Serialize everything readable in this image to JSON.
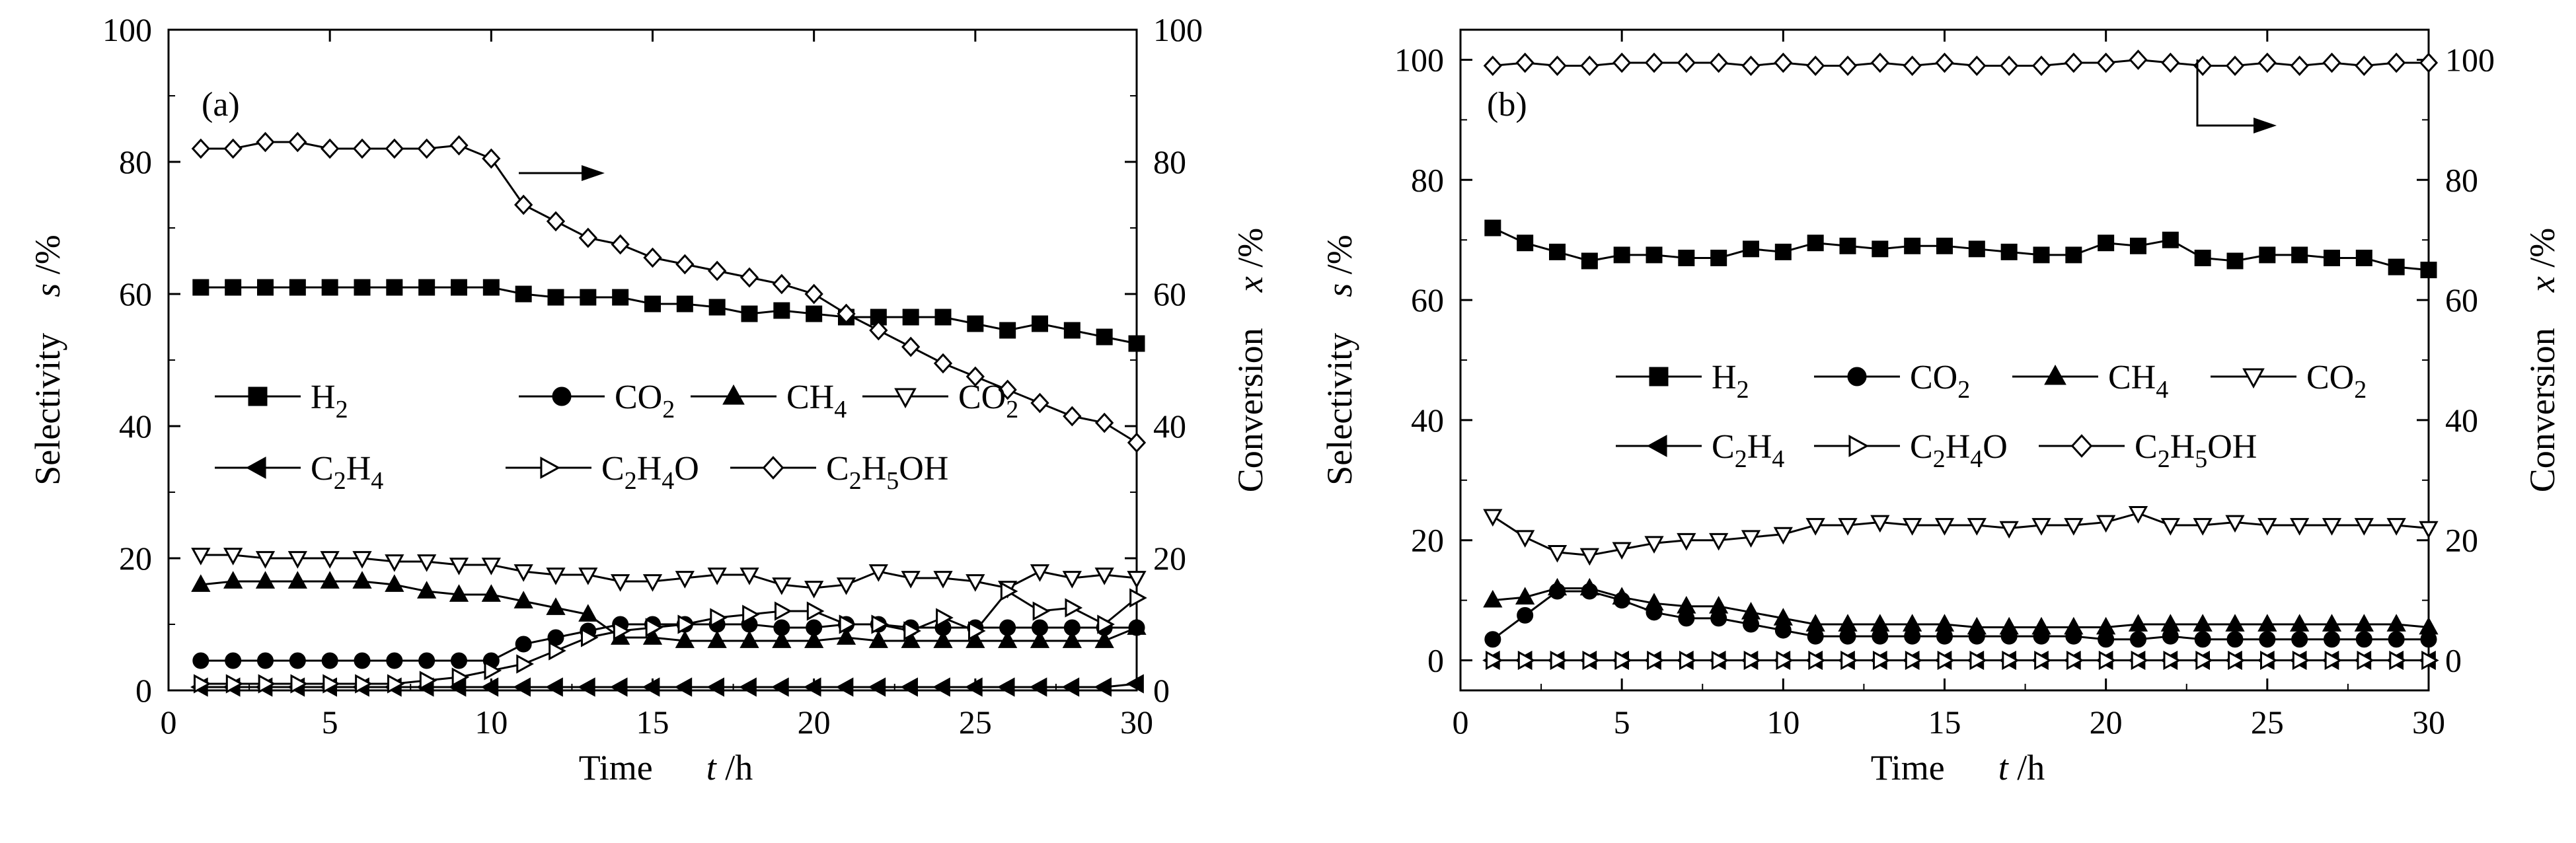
{
  "chart_data": [
    {
      "type": "line",
      "panel_label": "(a)",
      "xlabel": "Time",
      "xlabel_var": "t",
      "xlabel_unit": "/h",
      "ylabel": "Selectivity",
      "ylabel_var": "s",
      "ylabel_unit": "/%",
      "y2label": "Conversion",
      "y2label_var": "x",
      "y2label_unit": "/%",
      "xlim": [
        0,
        30
      ],
      "ylim": [
        0,
        100
      ],
      "y2lim": [
        0,
        100
      ],
      "xticks": [
        "0",
        "5",
        "10",
        "15",
        "20",
        "25",
        "30"
      ],
      "yticks": [
        "0",
        "20",
        "40",
        "60",
        "80",
        "100"
      ],
      "y2ticks": [
        "0",
        "20",
        "40",
        "60",
        "80",
        "100"
      ],
      "grid": false,
      "arrow": "points to right axis (conversion)",
      "x": [
        1,
        2,
        3,
        4,
        5,
        6,
        7,
        8,
        9,
        10,
        11,
        12,
        13,
        14,
        15,
        16,
        17,
        18,
        19,
        20,
        21,
        22,
        23,
        24,
        25,
        26,
        27,
        28,
        29,
        30
      ],
      "series": [
        {
          "name": "H2",
          "label_main": "H",
          "label_sub": "2",
          "label_rest": "",
          "marker": "square-filled",
          "values": [
            61,
            61,
            61,
            61,
            61,
            61,
            61,
            61,
            61,
            61,
            60,
            59.5,
            59.5,
            59.5,
            58.5,
            58.5,
            58,
            57,
            57.5,
            57,
            56.5,
            56.5,
            56.5,
            56.5,
            55.5,
            54.5,
            55.5,
            54.5,
            53.5,
            52.5
          ]
        },
        {
          "name": "CO2",
          "label_main": "CO",
          "label_sub": "2",
          "label_rest": "",
          "marker": "circle-filled",
          "values": [
            4.5,
            4.5,
            4.5,
            4.5,
            4.5,
            4.5,
            4.5,
            4.5,
            4.5,
            4.5,
            7,
            8,
            9,
            10,
            10,
            10,
            10,
            10,
            9.5,
            9.5,
            10,
            10,
            9.5,
            9.5,
            9.5,
            9.5,
            9.5,
            9.5,
            9.5,
            9.5
          ]
        },
        {
          "name": "CH4",
          "label_main": "CH",
          "label_sub": "4",
          "label_rest": "",
          "marker": "triangle-up-filled",
          "values": [
            16,
            16.5,
            16.5,
            16.5,
            16.5,
            16.5,
            16,
            15,
            14.5,
            14.5,
            13.5,
            12.5,
            11.5,
            8,
            8,
            7.5,
            7.5,
            7.5,
            7.5,
            7.5,
            8,
            7.5,
            7.5,
            7.5,
            7.5,
            7.5,
            7.5,
            7.5,
            7.5,
            9.5
          ]
        },
        {
          "name": "CO2",
          "label_main": "CO",
          "label_sub": "2",
          "label_rest": "",
          "marker": "triangle-down-open",
          "values": [
            20.5,
            20.5,
            20,
            20,
            20,
            20,
            19.5,
            19.5,
            19,
            19,
            18,
            17.5,
            17.5,
            16.5,
            16.5,
            17,
            17.5,
            17.5,
            16,
            15.5,
            16,
            18,
            17,
            17,
            16.5,
            15.5,
            18,
            17,
            17.5,
            17
          ]
        },
        {
          "name": "C2H4",
          "label_main": "C",
          "label_sub": "2",
          "label_rest": "H",
          "label_sub2": "4",
          "marker": "triangle-left-filled",
          "values": [
            0.5,
            0.5,
            0.5,
            0.5,
            0.5,
            0.5,
            0.5,
            0.5,
            0.5,
            0.5,
            0.5,
            0.5,
            0.5,
            0.5,
            0.5,
            0.5,
            0.5,
            0.5,
            0.5,
            0.5,
            0.5,
            0.5,
            0.5,
            0.5,
            0.5,
            0.5,
            0.5,
            0.5,
            0.5,
            1
          ]
        },
        {
          "name": "C2H4O",
          "label_main": "C",
          "label_sub": "2",
          "label_rest": "H",
          "label_sub2": "4",
          "label_rest2": "O",
          "marker": "triangle-right-open",
          "values": [
            1,
            1,
            1,
            1,
            1,
            1,
            1,
            1.5,
            2,
            3,
            4,
            6,
            8,
            9,
            9.5,
            10,
            11,
            11.5,
            12,
            12,
            10,
            10,
            9,
            11,
            9,
            15,
            12,
            12.5,
            10,
            14
          ]
        },
        {
          "name": "C2H5OH",
          "label_main": "C",
          "label_sub": "2",
          "label_rest": "H",
          "label_sub2": "5",
          "label_rest2": "OH",
          "marker": "diamond-open",
          "axis": "right",
          "values": [
            82,
            82,
            83,
            83,
            82,
            82,
            82,
            82,
            82.5,
            80.5,
            73.5,
            71,
            68.5,
            67.5,
            65.5,
            64.5,
            63.5,
            62.5,
            61.5,
            60,
            57,
            54.5,
            52,
            49.5,
            47.5,
            45.5,
            43.5,
            41.5,
            40.5,
            37.5
          ]
        }
      ]
    },
    {
      "type": "line",
      "panel_label": "(b)",
      "xlabel": "Time",
      "xlabel_var": "t",
      "xlabel_unit": "/h",
      "ylabel": "Selectivity",
      "ylabel_var": "s",
      "ylabel_unit": "/%",
      "y2label": "Conversion",
      "y2label_var": "x",
      "y2label_unit": "/%",
      "xlim": [
        0,
        30
      ],
      "ylim": [
        -5,
        105
      ],
      "y2lim": [
        -5,
        105
      ],
      "xticks": [
        "0",
        "5",
        "10",
        "15",
        "20",
        "25",
        "30"
      ],
      "yticks": [
        "0",
        "20",
        "40",
        "60",
        "80",
        "100"
      ],
      "y2ticks": [
        "0",
        "20",
        "40",
        "60",
        "80",
        "100"
      ],
      "grid": false,
      "arrow": "points to right axis (conversion)",
      "x": [
        1,
        2,
        3,
        4,
        5,
        6,
        7,
        8,
        9,
        10,
        11,
        12,
        13,
        14,
        15,
        16,
        17,
        18,
        19,
        20,
        21,
        22,
        23,
        24,
        25,
        26,
        27,
        28,
        29,
        30
      ],
      "series": [
        {
          "name": "H2",
          "label_main": "H",
          "label_sub": "2",
          "label_rest": "",
          "marker": "square-filled",
          "values": [
            72,
            69.5,
            68,
            66.5,
            67.5,
            67.5,
            67,
            67,
            68.5,
            68,
            69.5,
            69,
            68.5,
            69,
            69,
            68.5,
            68,
            67.5,
            67.5,
            69.5,
            69,
            70,
            67,
            66.5,
            67.5,
            67.5,
            67,
            67,
            65.5,
            65
          ]
        },
        {
          "name": "CO2",
          "label_main": "CO",
          "label_sub": "2",
          "label_rest": "",
          "marker": "circle-filled",
          "values": [
            3.5,
            7.5,
            11.5,
            11.5,
            10,
            8,
            7,
            7,
            6,
            5,
            4,
            4,
            4,
            4,
            4,
            4,
            4,
            4,
            4,
            3.5,
            3.5,
            4,
            3.5,
            3.5,
            3.5,
            3.5,
            3.5,
            3.5,
            3.5,
            3.5
          ]
        },
        {
          "name": "CH4",
          "label_main": "CH",
          "label_sub": "4",
          "label_rest": "",
          "marker": "triangle-up-filled",
          "values": [
            10,
            10.5,
            12,
            12,
            10.5,
            9.5,
            9,
            9,
            8,
            7,
            6,
            6,
            6,
            6,
            6,
            5.5,
            5.5,
            5.5,
            5.5,
            5.5,
            6,
            6,
            6,
            6,
            6,
            6,
            6,
            6,
            6,
            5.5
          ]
        },
        {
          "name": "CO2",
          "label_main": "CO",
          "label_sub": "2",
          "label_rest": "",
          "marker": "triangle-down-open",
          "values": [
            24,
            20.5,
            18,
            17.5,
            18.5,
            19.5,
            20,
            20,
            20.5,
            21,
            22.5,
            22.5,
            23,
            22.5,
            22.5,
            22.5,
            22,
            22.5,
            22.5,
            23,
            24.5,
            22.5,
            22.5,
            23,
            22.5,
            22.5,
            22.5,
            22.5,
            22.5,
            22
          ]
        },
        {
          "name": "C2H4",
          "label_main": "C",
          "label_sub": "2",
          "label_rest": "H",
          "label_sub2": "4",
          "marker": "triangle-left-filled",
          "values": [
            0,
            0,
            0,
            0,
            0,
            0,
            0,
            0,
            0,
            0,
            0,
            0,
            0,
            0,
            0,
            0,
            0,
            0,
            0,
            0,
            0,
            0,
            0,
            0,
            0,
            0,
            0,
            0,
            0,
            0
          ]
        },
        {
          "name": "C2H4O",
          "label_main": "C",
          "label_sub": "2",
          "label_rest": "H",
          "label_sub2": "4",
          "label_rest2": "O",
          "marker": "triangle-right-open",
          "values": [
            0,
            0,
            0,
            0,
            0,
            0,
            0,
            0,
            0,
            0,
            0,
            0,
            0,
            0,
            0,
            0,
            0,
            0,
            0,
            0,
            0,
            0,
            0,
            0,
            0,
            0,
            0,
            0,
            0,
            0
          ]
        },
        {
          "name": "C2H5OH",
          "label_main": "C",
          "label_sub": "2",
          "label_rest": "H",
          "label_sub2": "5",
          "label_rest2": "OH",
          "marker": "diamond-open",
          "axis": "right",
          "values": [
            99,
            99.5,
            99,
            99,
            99.5,
            99.5,
            99.5,
            99.5,
            99,
            99.5,
            99,
            99,
            99.5,
            99,
            99.5,
            99,
            99,
            99,
            99.5,
            99.5,
            100,
            99.5,
            99,
            99,
            99.5,
            99,
            99.5,
            99,
            99.5,
            99.5
          ]
        }
      ]
    }
  ]
}
